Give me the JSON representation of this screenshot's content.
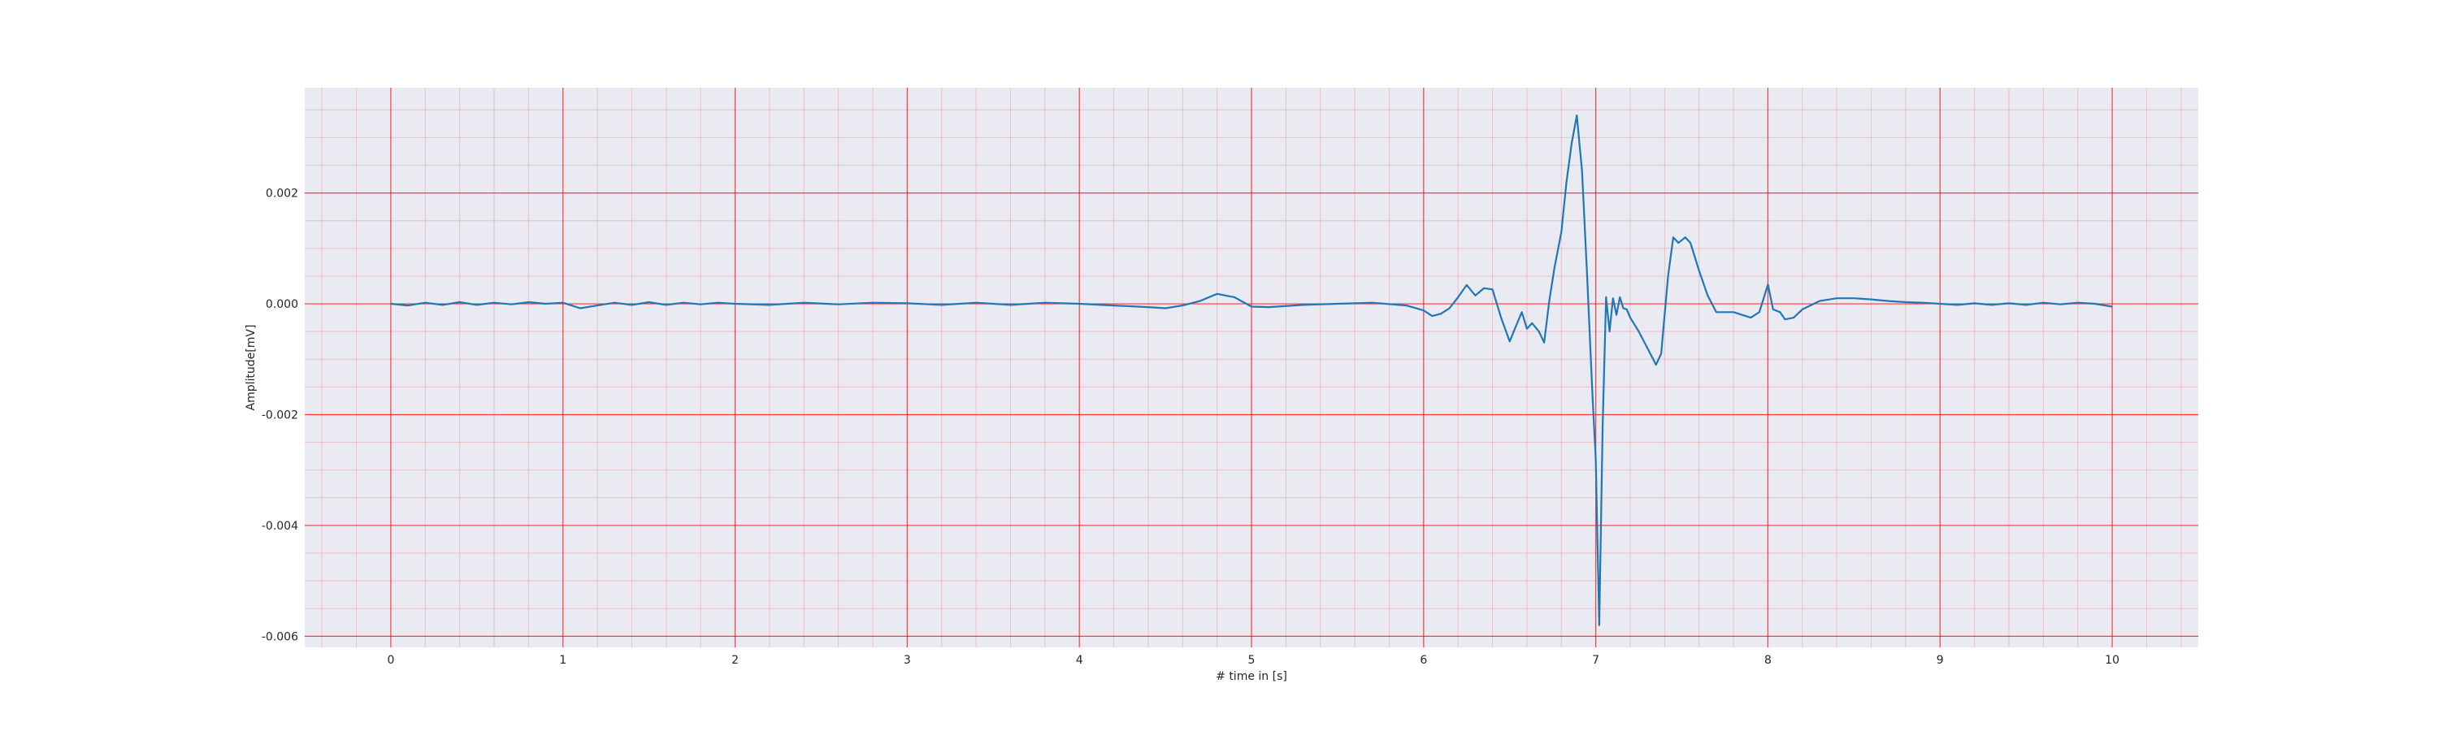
{
  "chart_data": {
    "type": "line",
    "title": "",
    "xlabel": "# time in [s]",
    "ylabel": "Amplitude[mV]",
    "xlim": [
      -0.5,
      10.5
    ],
    "ylim": [
      -0.0062,
      0.0039
    ],
    "x_ticks": [
      0,
      1,
      2,
      3,
      4,
      5,
      6,
      7,
      8,
      9,
      10
    ],
    "x_tick_labels": [
      "0",
      "1",
      "2",
      "3",
      "4",
      "5",
      "6",
      "7",
      "8",
      "9",
      "10"
    ],
    "y_ticks": [
      0.002,
      0.0,
      -0.002,
      -0.004,
      -0.006
    ],
    "y_tick_labels": [
      "0.002",
      "0.000",
      "-0.002",
      "-0.004",
      "-0.006"
    ],
    "grid": {
      "major": true,
      "minor": true,
      "color": "#ff0000"
    },
    "background_color": "#eaeaf2",
    "line_color": "#1f77b4",
    "series": [
      {
        "x": [
          0.0,
          0.1,
          0.2,
          0.3,
          0.4,
          0.5,
          0.6,
          0.7,
          0.8,
          0.9,
          1.0,
          1.1,
          1.2,
          1.3,
          1.4,
          1.5,
          1.6,
          1.7,
          1.8,
          1.9,
          2.0,
          2.2,
          2.4,
          2.6,
          2.8,
          3.0,
          3.2,
          3.4,
          3.6,
          3.8,
          4.0,
          4.2,
          4.4,
          4.5,
          4.6,
          4.7,
          4.8,
          4.9,
          5.0,
          5.1,
          5.3,
          5.5,
          5.7,
          5.9,
          6.0,
          6.05,
          6.1,
          6.15,
          6.2,
          6.25,
          6.3,
          6.35,
          6.4,
          6.45,
          6.5,
          6.53,
          6.57,
          6.6,
          6.63,
          6.67,
          6.7,
          6.73,
          6.76,
          6.8,
          6.83,
          6.86,
          6.89,
          6.92,
          6.95,
          6.98,
          7.0,
          7.02,
          7.04,
          7.06,
          7.08,
          7.1,
          7.12,
          7.14,
          7.16,
          7.18,
          7.2,
          7.25,
          7.3,
          7.35,
          7.38,
          7.42,
          7.45,
          7.48,
          7.52,
          7.55,
          7.6,
          7.65,
          7.7,
          7.8,
          7.9,
          7.95,
          8.0,
          8.03,
          8.07,
          8.1,
          8.15,
          8.2,
          8.3,
          8.4,
          8.5,
          8.6,
          8.7,
          8.8,
          8.9,
          9.0,
          9.1,
          9.2,
          9.3,
          9.4,
          9.5,
          9.6,
          9.7,
          9.8,
          9.9,
          10.0
        ],
        "y": [
          0.0,
          -3e-05,
          2e-05,
          -2e-05,
          3e-05,
          -2e-05,
          2e-05,
          -1e-05,
          3e-05,
          0.0,
          2e-05,
          -8e-05,
          -3e-05,
          2e-05,
          -2e-05,
          3e-05,
          -2e-05,
          2e-05,
          -1e-05,
          2e-05,
          0.0,
          -2e-05,
          2e-05,
          -1e-05,
          2e-05,
          1e-05,
          -2e-05,
          2e-05,
          -2e-05,
          2e-05,
          0.0,
          -3e-05,
          -6e-05,
          -8e-05,
          -3e-05,
          5e-05,
          0.00018,
          0.00012,
          -5e-05,
          -6e-05,
          -2e-05,
          0.0,
          2e-05,
          -3e-05,
          -0.00012,
          -0.00022,
          -0.00018,
          -8e-05,
          0.00012,
          0.00034,
          0.00015,
          0.00028,
          0.00026,
          -0.00025,
          -0.00068,
          -0.00045,
          -0.00015,
          -0.00045,
          -0.00035,
          -0.0005,
          -0.0007,
          5e-05,
          0.00065,
          0.0013,
          0.0022,
          0.0029,
          0.0034,
          0.0024,
          0.0005,
          -0.0016,
          -0.0028,
          -0.0058,
          -0.0022,
          0.00012,
          -0.0005,
          0.0001,
          -0.0002,
          0.00012,
          -8e-05,
          -0.0001,
          -0.00025,
          -0.0005,
          -0.0008,
          -0.0011,
          -0.0009,
          0.0005,
          0.0012,
          0.0011,
          0.0012,
          0.0011,
          0.0006,
          0.00015,
          -0.00015,
          -0.00015,
          -0.00025,
          -0.00015,
          0.00035,
          -0.0001,
          -0.00015,
          -0.00028,
          -0.00025,
          -0.0001,
          5e-05,
          0.0001,
          0.0001,
          8e-05,
          5e-05,
          3e-05,
          2e-05,
          0.0,
          -2e-05,
          1e-05,
          -2e-05,
          1e-05,
          -2e-05,
          2e-05,
          -1e-05,
          2e-05,
          0.0,
          -5e-05
        ]
      }
    ]
  }
}
